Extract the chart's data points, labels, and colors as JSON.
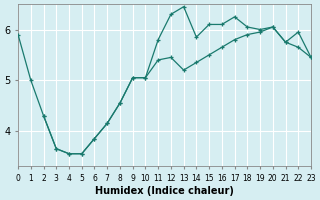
{
  "xlabel": "Humidex (Indice chaleur)",
  "ylabel": "",
  "background_color": "#d6eef2",
  "line_color": "#1a7a6e",
  "grid_color": "#ffffff",
  "xlim": [
    0,
    23
  ],
  "ylim": [
    3.3,
    6.5
  ],
  "yticks": [
    4,
    5,
    6
  ],
  "xticks": [
    0,
    1,
    2,
    3,
    4,
    5,
    6,
    7,
    8,
    9,
    10,
    11,
    12,
    13,
    14,
    15,
    16,
    17,
    18,
    19,
    20,
    21,
    22,
    23
  ],
  "curve1_x": [
    0,
    1,
    2,
    3,
    4,
    5,
    6,
    7,
    8,
    9,
    10,
    11,
    12,
    13,
    14,
    15,
    16,
    17,
    18,
    19,
    20,
    21,
    22,
    23
  ],
  "curve1_y": [
    5.9,
    5.0,
    4.3,
    3.65,
    3.55,
    3.55,
    3.85,
    4.15,
    4.55,
    5.05,
    5.05,
    5.8,
    6.3,
    6.45,
    5.85,
    6.1,
    6.1,
    6.25,
    6.05,
    6.0,
    6.05,
    5.75,
    5.95,
    5.45
  ],
  "curve2_x": [
    2,
    3,
    4,
    5,
    6,
    7,
    8,
    9,
    10,
    11,
    12,
    13,
    14,
    15,
    16,
    17,
    18,
    19,
    20,
    21,
    22,
    23
  ],
  "curve2_y": [
    4.3,
    3.65,
    3.55,
    3.55,
    3.85,
    4.15,
    4.55,
    5.05,
    5.05,
    5.4,
    5.45,
    5.2,
    5.35,
    5.5,
    5.65,
    5.8,
    5.9,
    5.95,
    6.05,
    5.75,
    5.65,
    5.45
  ]
}
